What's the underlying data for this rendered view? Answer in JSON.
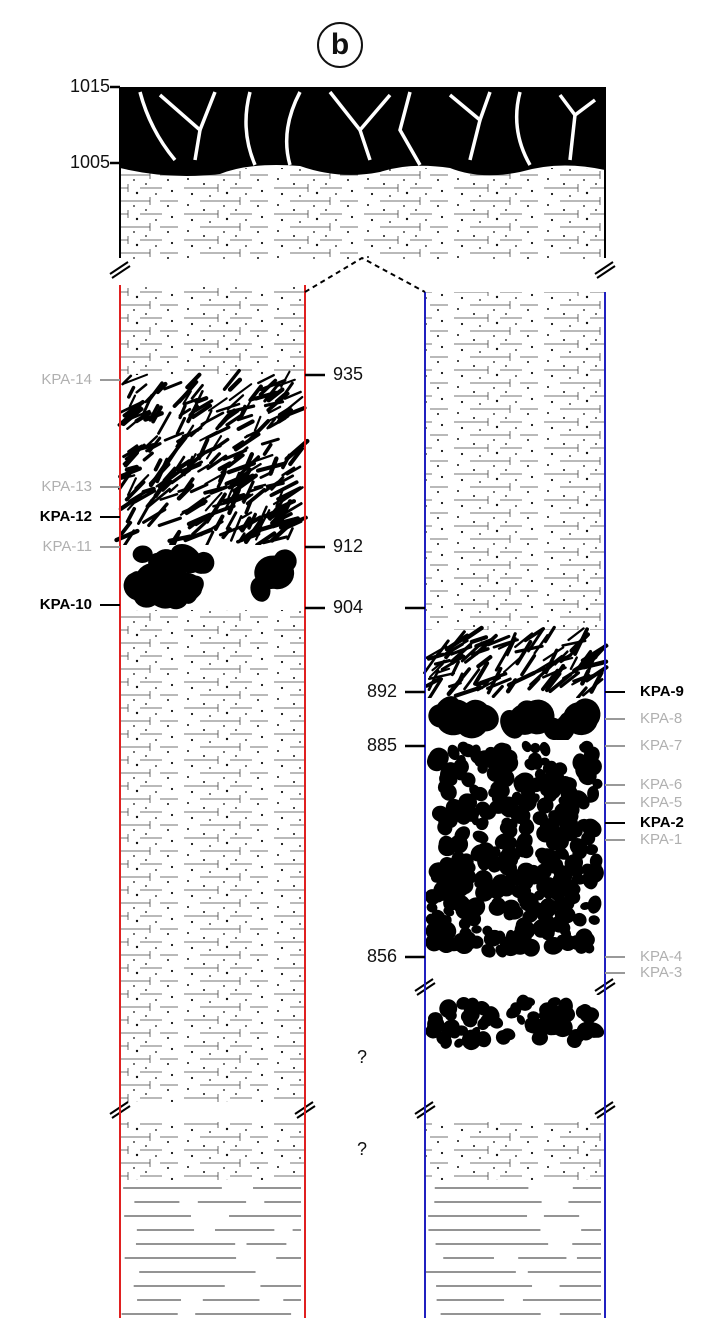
{
  "panel_label": "b",
  "elevations": [
    "1015",
    "1005",
    "935",
    "912",
    "904",
    "892",
    "885",
    "856"
  ],
  "uncertain": [
    "?",
    "?"
  ],
  "samples": [
    {
      "label": "KPA-14",
      "emphasis": false
    },
    {
      "label": "KPA-13",
      "emphasis": false
    },
    {
      "label": "KPA-12",
      "emphasis": true
    },
    {
      "label": "KPA-11",
      "emphasis": false
    },
    {
      "label": "KPA-10",
      "emphasis": true
    },
    {
      "label": "KPA-9",
      "emphasis": true
    },
    {
      "label": "KPA-8",
      "emphasis": false
    },
    {
      "label": "KPA-7",
      "emphasis": false
    },
    {
      "label": "KPA-6",
      "emphasis": false
    },
    {
      "label": "KPA-5",
      "emphasis": false
    },
    {
      "label": "KPA-2",
      "emphasis": true
    },
    {
      "label": "KPA-1",
      "emphasis": false
    },
    {
      "label": "KPA-4",
      "emphasis": false
    },
    {
      "label": "KPA-3",
      "emphasis": false
    }
  ]
}
